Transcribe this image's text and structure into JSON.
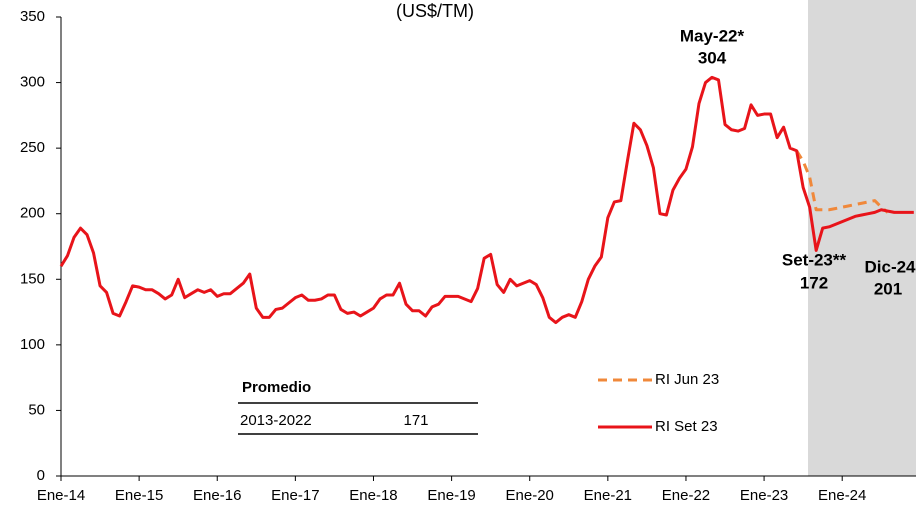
{
  "chart_data": {
    "type": "line",
    "title": "(US$/TM)",
    "categories": [
      "Ene-14",
      null,
      null,
      null,
      null,
      null,
      null,
      null,
      null,
      null,
      null,
      null,
      "Ene-15",
      null,
      null,
      null,
      null,
      null,
      null,
      null,
      null,
      null,
      null,
      null,
      "Ene-16",
      null,
      null,
      null,
      null,
      null,
      null,
      null,
      null,
      null,
      null,
      null,
      "Ene-17",
      null,
      null,
      null,
      null,
      null,
      null,
      null,
      null,
      null,
      null,
      null,
      "Ene-18",
      null,
      null,
      null,
      null,
      null,
      null,
      null,
      null,
      null,
      null,
      null,
      "Ene-19",
      null,
      null,
      null,
      null,
      null,
      null,
      null,
      null,
      null,
      null,
      null,
      "Ene-20",
      null,
      null,
      null,
      null,
      null,
      null,
      null,
      null,
      null,
      null,
      null,
      "Ene-21",
      null,
      null,
      null,
      null,
      null,
      null,
      null,
      null,
      null,
      null,
      null,
      "Ene-22",
      null,
      null,
      null,
      null,
      null,
      null,
      null,
      null,
      null,
      null,
      null,
      "Ene-23",
      null,
      null,
      null,
      null,
      null,
      null,
      null,
      null,
      null,
      null,
      null,
      "Ene-24",
      null,
      null,
      null,
      null,
      null,
      null,
      null,
      null,
      null,
      null,
      null
    ],
    "series": [
      {
        "name": "RI Jun 23",
        "color": "#f0883a",
        "dashed": true,
        "values": [
          null,
          null,
          null,
          null,
          null,
          null,
          null,
          null,
          null,
          null,
          null,
          null,
          null,
          null,
          null,
          null,
          null,
          null,
          null,
          null,
          null,
          null,
          null,
          null,
          null,
          null,
          null,
          null,
          null,
          null,
          null,
          null,
          null,
          null,
          null,
          null,
          null,
          null,
          null,
          null,
          null,
          null,
          null,
          null,
          null,
          null,
          null,
          null,
          null,
          null,
          null,
          null,
          null,
          null,
          null,
          null,
          null,
          null,
          null,
          null,
          null,
          null,
          null,
          null,
          null,
          null,
          null,
          null,
          null,
          null,
          null,
          null,
          null,
          null,
          null,
          null,
          null,
          null,
          null,
          null,
          null,
          null,
          null,
          null,
          null,
          null,
          null,
          null,
          null,
          null,
          null,
          null,
          null,
          null,
          null,
          null,
          null,
          null,
          null,
          null,
          null,
          null,
          null,
          null,
          null,
          null,
          null,
          null,
          null,
          null,
          null,
          null,
          null,
          248,
          240,
          228,
          203,
          203,
          203,
          204,
          205,
          206,
          207,
          208,
          209,
          210,
          205,
          201,
          null,
          null,
          null,
          null
        ]
      },
      {
        "name": "RI Set 23",
        "color": "#e8141a",
        "dashed": false,
        "values": [
          160,
          168,
          182,
          189,
          184,
          170,
          145,
          140,
          124,
          122,
          133,
          145,
          144,
          142,
          142,
          139,
          135,
          138,
          150,
          136,
          139,
          142,
          140,
          142,
          137,
          139,
          139,
          143,
          147,
          154,
          128,
          121,
          121,
          127,
          128,
          132,
          136,
          138,
          134,
          134,
          135,
          138,
          138,
          127,
          124,
          125,
          122,
          125,
          128,
          135,
          138,
          138,
          147,
          131,
          126,
          126,
          122,
          129,
          131,
          137,
          137,
          137,
          135,
          133,
          143,
          166,
          169,
          146,
          140,
          150,
          145,
          147,
          149,
          146,
          136,
          121,
          117,
          121,
          123,
          121,
          133,
          150,
          160,
          167,
          197,
          209,
          210,
          240,
          269,
          264,
          252,
          235,
          200,
          199,
          218,
          227,
          234,
          251,
          284,
          300,
          304,
          302,
          268,
          264,
          263,
          265,
          283,
          275,
          276,
          276,
          258,
          266,
          250,
          248,
          220,
          205,
          172,
          189,
          190,
          192,
          194,
          196,
          198,
          199,
          200,
          201,
          203,
          202,
          201,
          201,
          201,
          201
        ]
      }
    ],
    "annotations": [
      "May-22*",
      "Set-23**",
      "Dic-24"
    ],
    "average_table": {
      "header": "Promedio",
      "rows": [
        [
          "2013-2022",
          171
        ]
      ]
    },
    "ylim": [
      0,
      350
    ],
    "yticks": [
      0,
      50,
      100,
      150,
      200,
      250,
      300,
      350
    ],
    "grid": false
  }
}
